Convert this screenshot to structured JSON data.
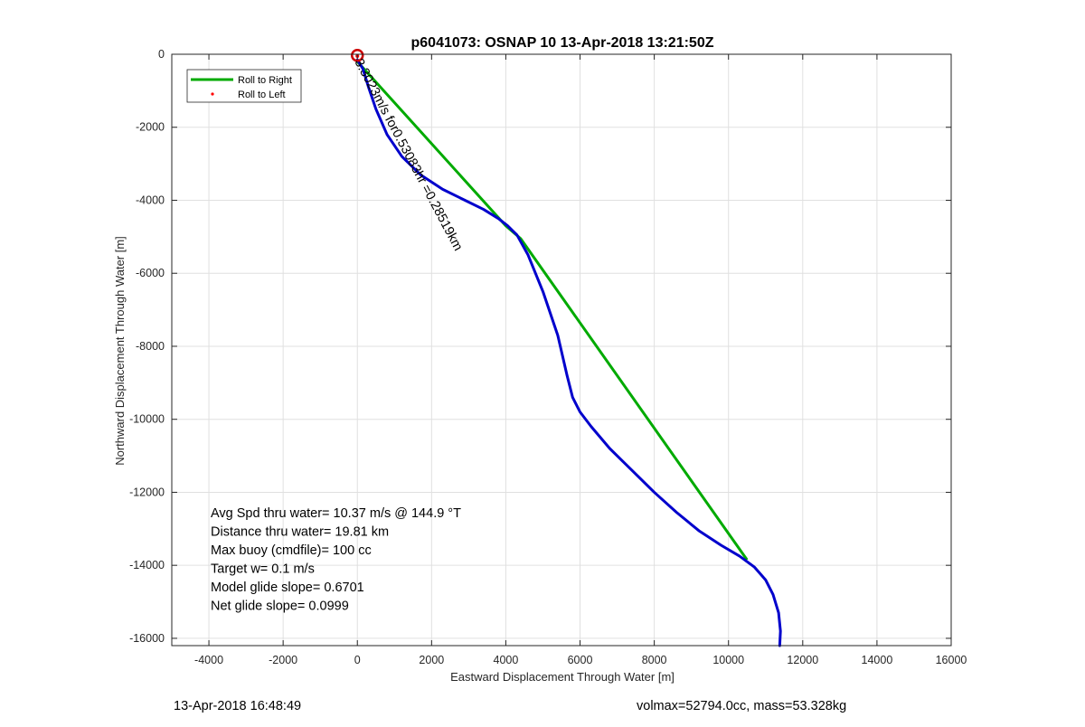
{
  "chart_data": {
    "type": "line",
    "title": "p6041073: OSNAP 10 13-Apr-2018 13:21:50Z",
    "xlabel": "Eastward Displacement Through Water [m]",
    "ylabel": "Northward Displacement Through Water [m]",
    "xlim": [
      -5000,
      16000
    ],
    "ylim": [
      -16200,
      0
    ],
    "xticks": [
      -4000,
      -2000,
      0,
      2000,
      4000,
      6000,
      8000,
      10000,
      12000,
      14000,
      16000
    ],
    "yticks": [
      0,
      -2000,
      -4000,
      -6000,
      -8000,
      -10000,
      -12000,
      -14000,
      -16000
    ],
    "grid": true,
    "legend_position": "top-left",
    "legend": [
      "Roll to Right",
      "Roll to Left"
    ],
    "colors": {
      "roll_right": "#00aa00",
      "roll_left": "#ff0000",
      "track": "#0000cc",
      "marker": "#cc0000",
      "grid": "#e0e0e0"
    },
    "series": [
      {
        "name": "Roll to Right",
        "style": "line",
        "x": [
          0,
          4000,
          4400,
          10500
        ],
        "y": [
          -200,
          -4700,
          -5050,
          -13850
        ]
      },
      {
        "name": "Roll to Left",
        "style": "points",
        "x": [
          0
        ],
        "y": [
          -50
        ]
      },
      {
        "style": "line",
        "x": [
          0,
          150,
          300,
          500,
          800,
          1200,
          1700,
          2300,
          2900,
          3400,
          3800,
          4050,
          4300,
          4600,
          5000,
          5400,
          5650,
          5800,
          6000,
          6300,
          6800,
          7400,
          8000,
          8600,
          9200,
          9800,
          10300,
          10700,
          11000,
          11200,
          11350,
          11400,
          11380
        ],
        "y": [
          -150,
          -400,
          -900,
          -1500,
          -2200,
          -2800,
          -3300,
          -3700,
          -4000,
          -4250,
          -4500,
          -4700,
          -4950,
          -5500,
          -6500,
          -7700,
          -8800,
          -9400,
          -9800,
          -10200,
          -10800,
          -11400,
          -12000,
          -12550,
          -13050,
          -13450,
          -13750,
          -14050,
          -14400,
          -14800,
          -15300,
          -15800,
          -16200
        ]
      }
    ],
    "marker": {
      "x": 0,
      "y": -30
    },
    "rotated_annotation": "3.3023m/s for0.53083hr =0.28519km",
    "annotations": [
      "Avg Spd thru water= 10.37 m/s @ 144.9 °T",
      "Distance thru water= 19.81 km",
      "Max buoy (cmdfile)= 100 cc",
      "Target w= 0.1 m/s",
      "Model glide slope= 0.6701",
      "Net glide slope= 0.0999"
    ]
  },
  "footer": {
    "left": "13-Apr-2018 16:48:49",
    "right": "volmax=52794.0cc, mass=53.328kg"
  }
}
